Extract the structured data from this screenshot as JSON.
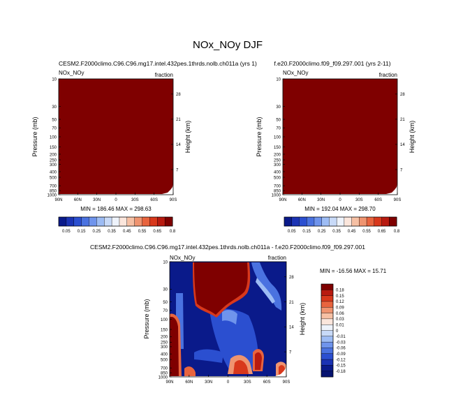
{
  "figure": {
    "title": "NOx_NOy DJF"
  },
  "colors": {
    "fill_high": "#7f0000",
    "dark_blue": "#0a1a8a",
    "mid_blue": "#2b4fd0"
  },
  "chart_data": [
    {
      "type": "heatmap",
      "case_title": "CESM2.F2000climo.C96.C96.mg17.intel.432pes.1thrds.nolb.ch011a (yrs 1)",
      "variable_label": "NOx_NOy",
      "units_label": "fraction",
      "ylabel": "Pressure (mb)",
      "ylabel_right": "Height (km)",
      "x_ticks": [
        "90N",
        "60N",
        "30N",
        "0",
        "30S",
        "60S",
        "90S"
      ],
      "y_ticks": [
        "10",
        "30",
        "50",
        "70",
        "100",
        "150",
        "200",
        "250",
        "300",
        "400",
        "500",
        "700",
        "850",
        "1000"
      ],
      "y_right_ticks": [
        "28",
        "21",
        "14",
        "7"
      ],
      "stats": "MIN = 186.46   MAX = 298.63",
      "colorbar_levels": [
        "0.05",
        "0.15",
        "0.25",
        "0.35",
        "0.45",
        "0.55",
        "0.65",
        "0.8"
      ],
      "colorbar_colors": [
        "#0a1a8a",
        "#1b33b4",
        "#2b4fd0",
        "#4a72e0",
        "#6f94ec",
        "#9dbcf4",
        "#c8daf8",
        "#eef3fb",
        "#fbe6dc",
        "#f6c0a4",
        "#ef9470",
        "#e8643e",
        "#d8381c",
        "#b81a10",
        "#7f0000"
      ]
    },
    {
      "type": "heatmap",
      "case_title": "f.e20.F2000climo.f09_f09.297.001 (yrs 2-11)",
      "variable_label": "NOx_NOy",
      "units_label": "fraction",
      "ylabel": "Pressure (mb)",
      "ylabel_right": "Height (km)",
      "x_ticks": [
        "90N",
        "60N",
        "30N",
        "0",
        "30S",
        "60S",
        "90S"
      ],
      "y_ticks": [
        "10",
        "30",
        "50",
        "70",
        "100",
        "150",
        "200",
        "250",
        "300",
        "400",
        "500",
        "700",
        "850",
        "1000"
      ],
      "y_right_ticks": [
        "28",
        "21",
        "14",
        "7"
      ],
      "stats": "MIN = 192.04   MAX = 298.70",
      "colorbar_levels": [
        "0.05",
        "0.15",
        "0.25",
        "0.35",
        "0.45",
        "0.55",
        "0.65",
        "0.8"
      ],
      "colorbar_colors": [
        "#0a1a8a",
        "#1b33b4",
        "#2b4fd0",
        "#4a72e0",
        "#6f94ec",
        "#9dbcf4",
        "#c8daf8",
        "#eef3fb",
        "#fbe6dc",
        "#f6c0a4",
        "#ef9470",
        "#e8643e",
        "#d8381c",
        "#b81a10",
        "#7f0000"
      ]
    },
    {
      "type": "heatmap",
      "case_title": "CESM2.F2000climo.C96.C96.mg17.intel.432pes.1thrds.nolb.ch011a - f.e20.F2000climo.f09_f09.297.001",
      "variable_label": "NOx_NOy",
      "units_label": "fraction",
      "ylabel": "Pressure (mb)",
      "ylabel_right": "Height (km)",
      "x_ticks": [
        "90N",
        "60N",
        "30N",
        "0",
        "30S",
        "60S",
        "90S"
      ],
      "y_ticks": [
        "10",
        "30",
        "50",
        "70",
        "100",
        "150",
        "200",
        "250",
        "300",
        "400",
        "500",
        "700",
        "850",
        "1000"
      ],
      "y_right_ticks": [
        "28",
        "21",
        "14",
        "7"
      ],
      "stats": "MIN = -16.56   MAX =  15.71",
      "colorbar_levels": [
        "0.18",
        "0.15",
        "0.12",
        "0.09",
        "0.06",
        "0.03",
        "0.01",
        "0",
        "-0.01",
        "-0.03",
        "-0.06",
        "-0.09",
        "-0.12",
        "-0.15",
        "-0.18"
      ],
      "colorbar_colors": [
        "#7f0000",
        "#b81a10",
        "#d8381c",
        "#e8643e",
        "#ef9470",
        "#f6c0a4",
        "#fbe6dc",
        "#eef3fb",
        "#c8daf8",
        "#9dbcf4",
        "#6f94ec",
        "#4a72e0",
        "#2b4fd0",
        "#1b33b4",
        "#0a1a8a",
        "#061370"
      ]
    }
  ]
}
